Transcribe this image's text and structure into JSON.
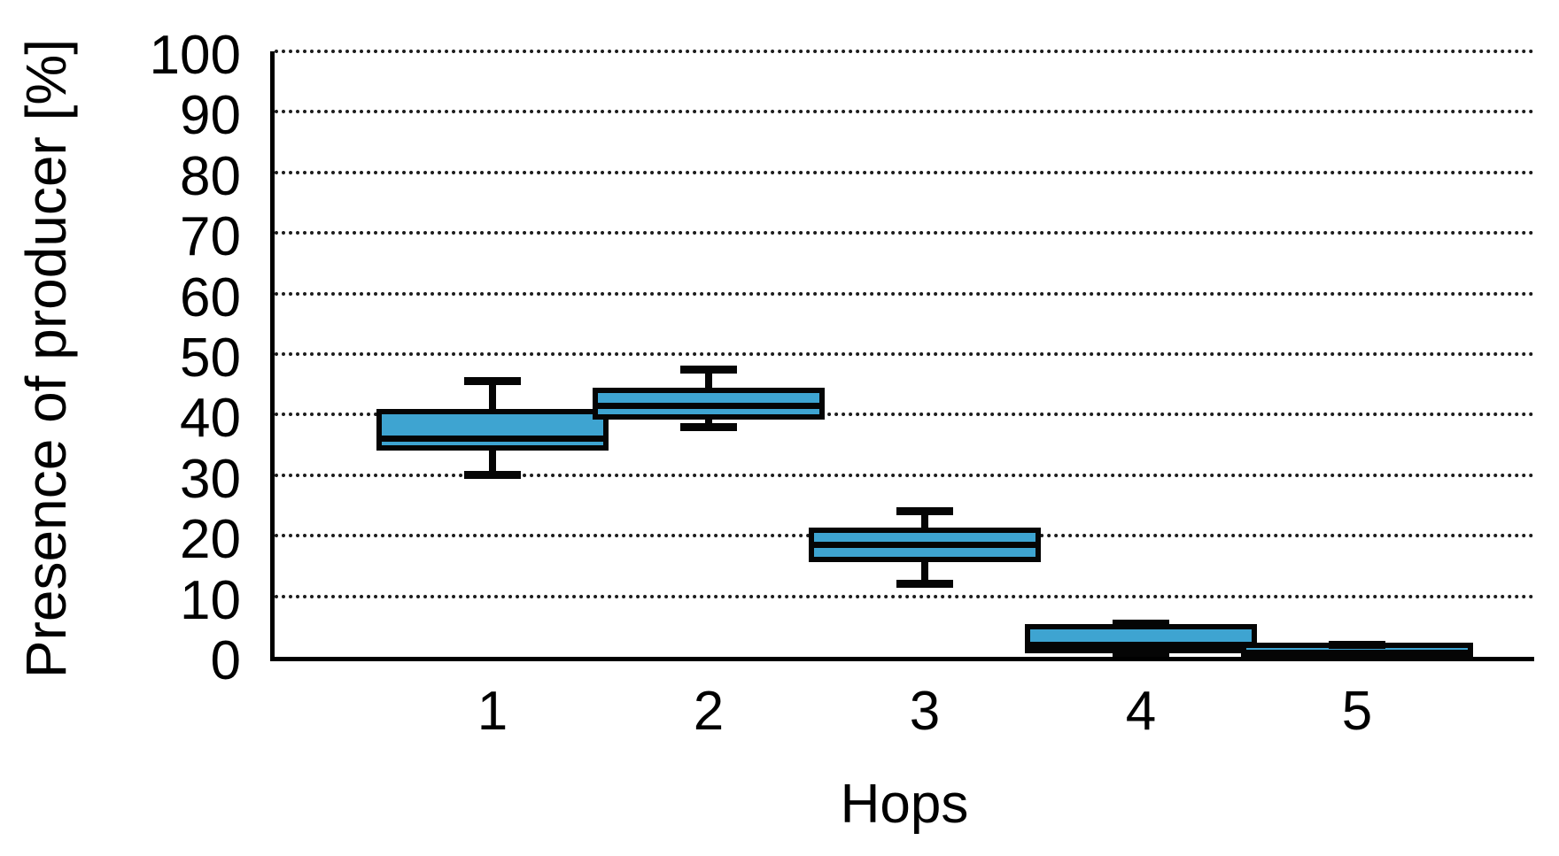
{
  "chart_data": {
    "type": "boxplot",
    "title": "",
    "xlabel": "Hops",
    "ylabel": "Presence of producer [%]",
    "categories": [
      "1",
      "2",
      "3",
      "4",
      "5"
    ],
    "ylim": [
      0,
      100
    ],
    "yticks": [
      0,
      10,
      20,
      30,
      40,
      50,
      60,
      70,
      80,
      90,
      100
    ],
    "grid": "horizontal dotted lines at every 10",
    "legend_position": "none",
    "box_fill_color": "#3EA4D1",
    "box_border_color": "#050505",
    "boxes": [
      {
        "category": "1",
        "whisker_low": 30,
        "q1": 35,
        "median": 36,
        "q3": 40,
        "whisker_high": 45.5
      },
      {
        "category": "2",
        "whisker_low": 38,
        "q1": 40,
        "median": 41.5,
        "q3": 43.5,
        "whisker_high": 47.5
      },
      {
        "category": "3",
        "whisker_low": 12,
        "q1": 16.5,
        "median": 18.5,
        "q3": 20.5,
        "whisker_high": 24
      },
      {
        "category": "4",
        "whisker_low": 0.7,
        "q1": 1.5,
        "median": 2,
        "q3": 4.5,
        "whisker_high": 5.5
      },
      {
        "category": "5",
        "whisker_low": 0,
        "q1": 0.3,
        "median": 0.6,
        "q3": 1.5,
        "whisker_high": 2
      }
    ]
  }
}
